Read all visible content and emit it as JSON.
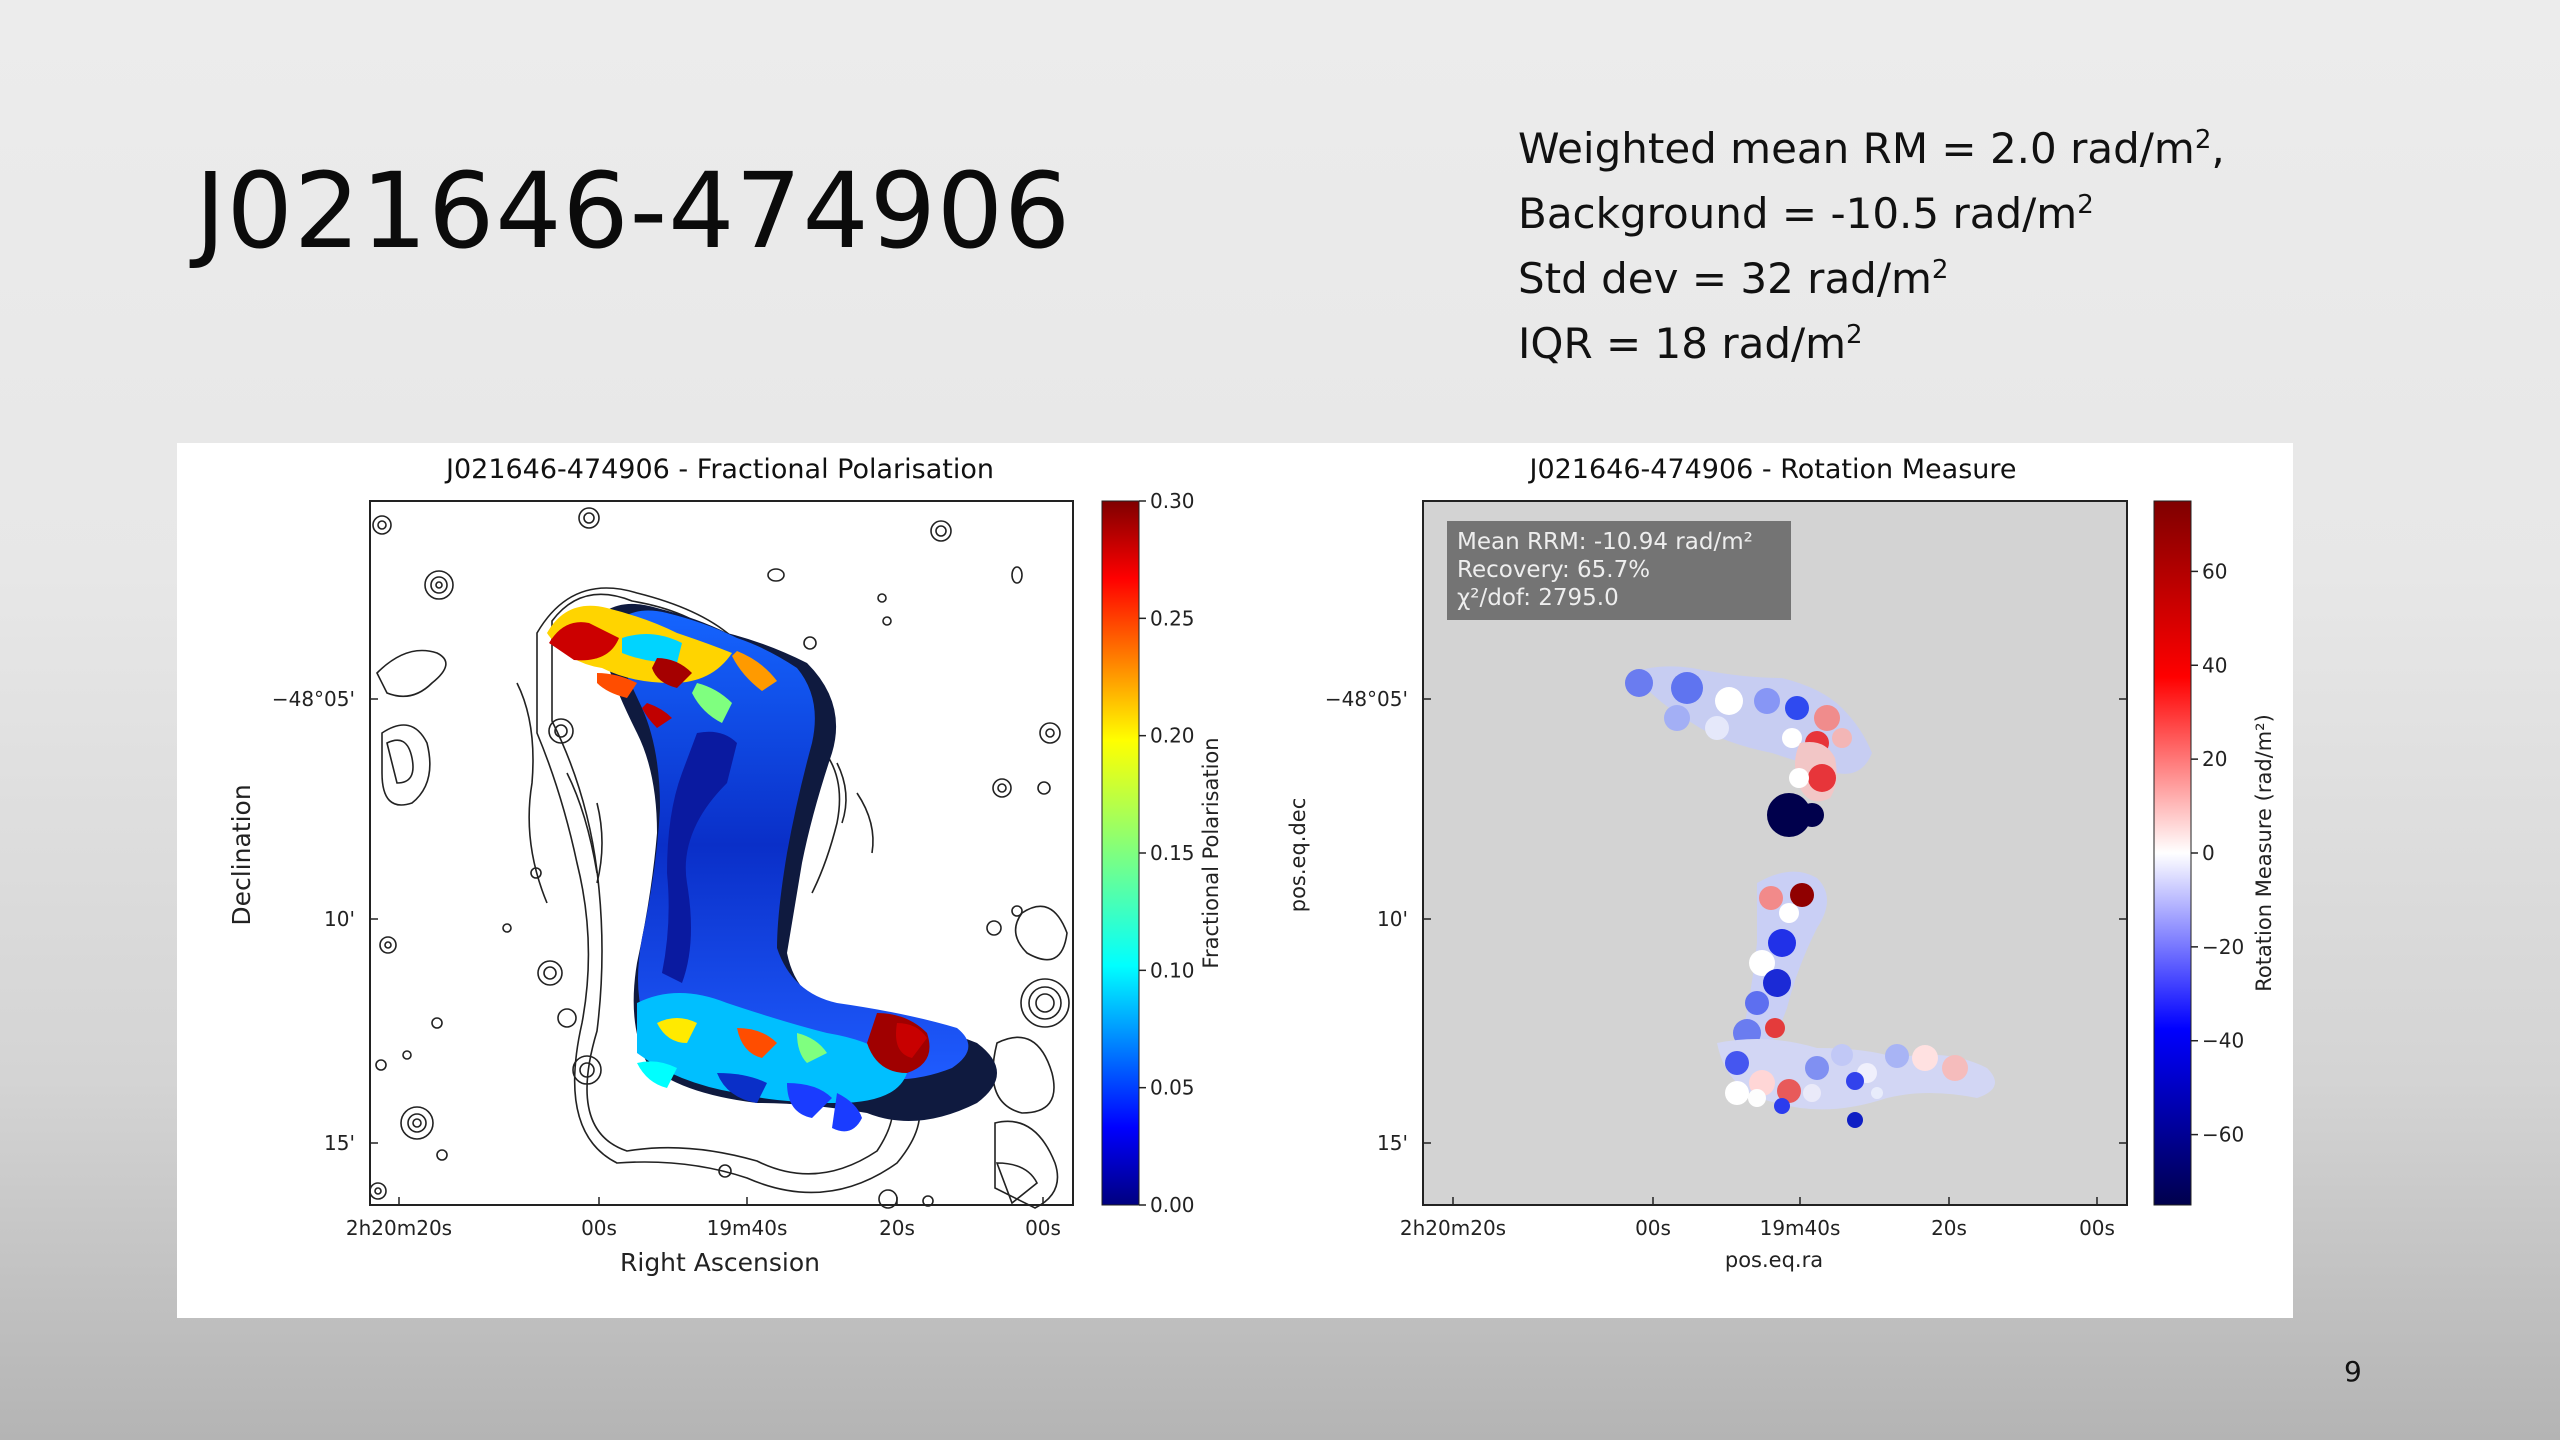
{
  "slide": {
    "title": "J021646-474906",
    "page_number": "9",
    "stats": [
      {
        "label": "Weighted mean RM = 2.0 rad/m",
        "sup": "2",
        "suffix": ","
      },
      {
        "label": "Background = -10.5 rad/m",
        "sup": "2",
        "suffix": ""
      },
      {
        "label": "Std dev = 32 rad/m",
        "sup": "2",
        "suffix": ""
      },
      {
        "label": "IQR = 18 rad/m",
        "sup": "2",
        "suffix": ""
      }
    ]
  },
  "chart_data": [
    {
      "type": "heatmap",
      "title": "J021646-474906 - Fractional Polarisation",
      "xlabel": "Right Ascension",
      "ylabel": "Declination",
      "x_ticks": [
        "2h20m20s",
        "00s",
        "19m40s",
        "20s",
        "00s"
      ],
      "y_ticks": [
        "−48°05'",
        "10'",
        "15'"
      ],
      "colorbar": {
        "label": "Fractional Polarisation",
        "ticks": [
          "0.30",
          "0.25",
          "0.20",
          "0.15",
          "0.10",
          "0.05",
          "0.00"
        ],
        "range": [
          0.0,
          0.3
        ],
        "colormap": "jet"
      }
    },
    {
      "type": "heatmap",
      "title": "J021646-474906 - Rotation Measure",
      "xlabel": "pos.eq.ra",
      "ylabel": "pos.eq.dec",
      "x_ticks": [
        "2h20m20s",
        "00s",
        "19m40s",
        "20s",
        "00s"
      ],
      "y_ticks": [
        "−48°05'",
        "10'",
        "15'"
      ],
      "annotation": [
        "Mean RRM: -10.94 rad/m²",
        "Recovery: 65.7%",
        "χ²/dof: 2795.0"
      ],
      "colorbar": {
        "label": "Rotation Measure (rad/m²)",
        "ticks": [
          "60",
          "40",
          "20",
          "0",
          "−20",
          "−40",
          "−60"
        ],
        "range": [
          -75,
          75
        ],
        "colormap": "seismic"
      }
    }
  ]
}
